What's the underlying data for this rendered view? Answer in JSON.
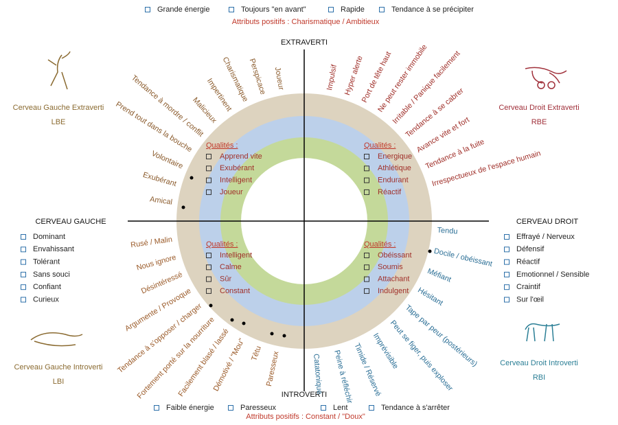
{
  "top": {
    "items": [
      "Grande énergie",
      "Toujours \"en avant\"",
      "Rapide",
      "Tendance à se précipiter"
    ],
    "note": "Attributs positifs : Charismatique / Ambitieux"
  },
  "bottom": {
    "items": [
      "Faible énergie",
      "Paresseux",
      "Lent",
      "Tendance à s'arrêter"
    ],
    "note": "Attributs positifs : Constant / \"Doux\""
  },
  "axes": {
    "top": "EXTRAVERTI",
    "bottom": "INTROVERTI",
    "left": "CERVEAU GAUCHE",
    "right": "CERVEAU DROIT"
  },
  "left_list": [
    "Dominant",
    "Envahissant",
    "Tolérant",
    "Sans souci",
    "Confiant",
    "Curieux"
  ],
  "right_list": [
    "Effrayé / Nerveux",
    "Défensif",
    "Réactif",
    "Emotionnel / Sensible",
    "Craintif",
    "Sur l'œil"
  ],
  "corners": {
    "top_left": {
      "title": "Cerveau Gauche Extraverti",
      "code": "LBE"
    },
    "top_right": {
      "title": "Cerveau Droit Extraverti",
      "code": "RBE"
    },
    "bottom_left": {
      "title": "Cerveau Gauche Introverti",
      "code": "LBI"
    },
    "bottom_right": {
      "title": "Cerveau Droit Introverti",
      "code": "RBI"
    }
  },
  "quadrants": {
    "top_left": {
      "heading": "Qualités :",
      "items": [
        "Apprend vite",
        "Exubérant",
        "Intelligent",
        "Joueur"
      ],
      "traits": [
        "Joueur",
        "Perspicace",
        "Charismatique",
        "Impertinent",
        "Malicieux",
        "Tendance à mordre  / conflit",
        "Prend tout dans la bouche",
        "Volontaire",
        "Exubérant",
        "Amical"
      ]
    },
    "top_right": {
      "heading": "Qualités :",
      "items": [
        "Energique",
        "Athlétique",
        "Endurant",
        "Réactif"
      ],
      "traits": [
        "Impulsif",
        "Hyper alerte",
        "Port de tête haut",
        "Ne peut rester immobile",
        "Irritable / Panique facilement",
        "Tendance à se cabrer",
        "Avance vite et fort",
        "Tendance à la fuite",
        "Irrespectueux de l'espace humain"
      ]
    },
    "bottom_left": {
      "heading": "Qualités :",
      "items": [
        "Intelligent",
        "Calme",
        "Sûr",
        "Constant"
      ],
      "traits": [
        "Rusé / Malin",
        "Nous ignore",
        "Désintéressé",
        "Argumente / Provoque",
        "Tendance à s'opposer / charger",
        "Fortement  porté sur la nourriture",
        "Facilement blasé / lassé",
        "Démotivé / \"Mou\"",
        "Têtu",
        "Paresseux"
      ]
    },
    "bottom_right": {
      "heading": "Qualités :",
      "items": [
        "Obéissant",
        "Soumis",
        "Attachant",
        "Indulgent"
      ],
      "traits": [
        "Tendu",
        "Docile / obéissant",
        "Méfiant",
        "Hésitant",
        "Tape par peur (postérieurs)",
        "Peut se figer, puis exploser",
        "Imprévisible",
        "Timide / Réservé",
        "Peine à réfléchir",
        "Catatonique"
      ]
    }
  }
}
